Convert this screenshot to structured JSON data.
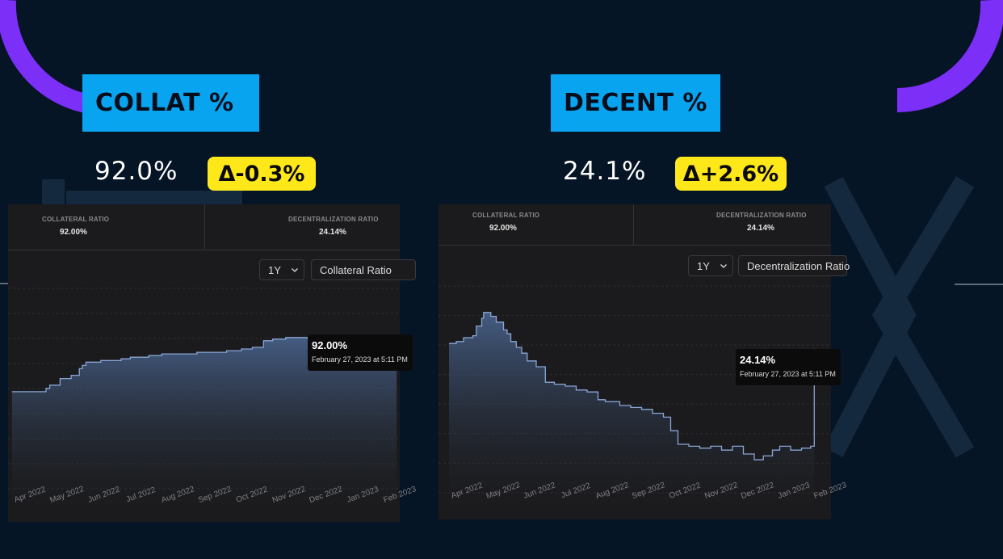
{
  "colors": {
    "background": "#061526",
    "arc": "#7b2ff7",
    "label_bg": "#08a4f0",
    "badge_bg": "#ffe81a",
    "panel_bg": "#1b1b1d",
    "line": "#8aa5d6"
  },
  "metrics": [
    {
      "label": "COLLAT %",
      "value": "92.0%",
      "delta": "Δ-0.3%"
    },
    {
      "label": "DECENT %",
      "value": "24.1%",
      "delta": "Δ+2.6%"
    }
  ],
  "panels": [
    {
      "header": [
        {
          "title": "COLLATERAL RATIO",
          "value": "92.00%"
        },
        {
          "title": "DECENTRALIZATION RATIO",
          "value": "24.14%"
        }
      ],
      "range_label": "1Y",
      "metric_select": "Collateral Ratio",
      "tooltip": {
        "value": "92.00%",
        "date": "February 27, 2023 at 5:11 PM"
      },
      "x_ticks": [
        "Apr 2022",
        "May 2022",
        "Jun 2022",
        "Jul 2022",
        "Aug 2022",
        "Sep 2022",
        "Oct 2022",
        "Nov 2022",
        "Dec 2022",
        "Jan 2023",
        "Feb 2023"
      ]
    },
    {
      "header": [
        {
          "title": "COLLATERAL RATIO",
          "value": "92.00%"
        },
        {
          "title": "DECENTRALIZATION RATIO",
          "value": "24.14%"
        }
      ],
      "range_label": "1Y",
      "metric_select": "Decentralization Ratio",
      "tooltip": {
        "value": "24.14%",
        "date": "February 27, 2023 at 5:11 PM"
      },
      "x_ticks": [
        "Apr 2022",
        "May 2022",
        "Jun 2022",
        "Jul 2022",
        "Aug 2022",
        "Sep 2022",
        "Oct 2022",
        "Nov 2022",
        "Dec 2022",
        "Jan 2023",
        "Feb 2023"
      ]
    }
  ],
  "chart_data": [
    {
      "type": "area",
      "title": "Collateral Ratio",
      "xlabel": "",
      "ylabel": "",
      "ylim": [
        87.3,
        93.2
      ],
      "series": [
        {
          "name": "Collateral Ratio",
          "x": [
            -0.2,
            0.4,
            0.72,
            0.82,
            1.1,
            1.4,
            1.62,
            1.7,
            1.8,
            2.2,
            2.75,
            3.0,
            3.5,
            3.85,
            4.3,
            4.8,
            5.15,
            5.6,
            6.0,
            6.3,
            6.6,
            6.85,
            7.2,
            7.55,
            7.8,
            8.0,
            8.5,
            9.0,
            9.5,
            10.2
          ],
          "values": [
            90.4,
            90.4,
            90.5,
            90.6,
            90.8,
            90.9,
            91.1,
            91.2,
            91.3,
            91.35,
            91.4,
            91.45,
            91.5,
            91.55,
            91.55,
            91.6,
            91.6,
            91.65,
            91.7,
            91.75,
            91.95,
            92.0,
            92.05,
            92.05,
            92.0,
            92.0,
            92.0,
            92.0,
            92.0,
            92.0
          ]
        }
      ]
    },
    {
      "type": "area",
      "title": "Decentralization Ratio",
      "xlabel": "",
      "ylabel": "",
      "ylim": [
        -13,
        37
      ],
      "series": [
        {
          "name": "Decentralization Ratio",
          "x": [
            -0.2,
            0.0,
            0.2,
            0.45,
            0.55,
            0.7,
            0.75,
            0.95,
            1.1,
            1.3,
            1.4,
            1.5,
            1.65,
            1.8,
            1.95,
            2.2,
            2.45,
            2.7,
            3.0,
            3.3,
            3.6,
            3.9,
            4.1,
            4.5,
            4.8,
            5.1,
            5.4,
            5.7,
            5.9,
            6.1,
            6.4,
            6.7,
            7.0,
            7.3,
            7.6,
            7.9,
            8.2,
            8.45,
            8.7,
            8.9,
            9.2,
            9.5,
            9.75,
            9.85
          ],
          "values": [
            25.5,
            26.0,
            27.0,
            27.5,
            30.0,
            32.0,
            33.5,
            32.5,
            31.0,
            29.0,
            28.0,
            26.0,
            24.5,
            23.0,
            21.0,
            19.5,
            15.5,
            15.0,
            14.5,
            13.5,
            13.0,
            11.0,
            10.5,
            9.5,
            9.0,
            8.5,
            7.5,
            6.5,
            3.0,
            -0.5,
            -1.0,
            -1.5,
            -1.0,
            -2.0,
            -1.0,
            -3.0,
            -4.5,
            -3.5,
            -2.0,
            -1.0,
            -2.0,
            -1.5,
            -1.0,
            24.14
          ]
        }
      ]
    }
  ]
}
